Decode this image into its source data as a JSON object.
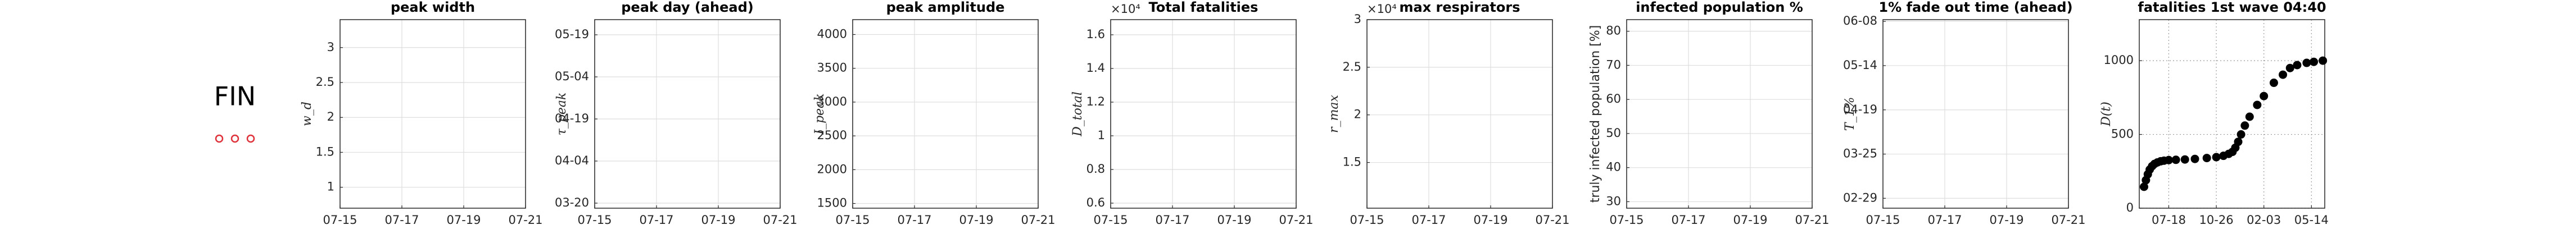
{
  "country": "FIN",
  "chart_data": [
    {
      "type": "line",
      "title": "peak width",
      "ylabel": "w_d",
      "series": [],
      "xlim": [
        197,
        203
      ],
      "xticks": [
        {
          "value": 197,
          "label": "07-15"
        },
        {
          "value": 199,
          "label": "07-17"
        },
        {
          "value": 201,
          "label": "07-19"
        },
        {
          "value": 203,
          "label": "07-21"
        }
      ],
      "ylim": [
        0.7,
        3.4
      ],
      "yticks": [
        1,
        1.5,
        2,
        2.5,
        3
      ],
      "grid": true
    },
    {
      "type": "line",
      "title": "peak day (ahead)",
      "ylabel": "τ_peak",
      "series": [],
      "xlim": [
        197,
        203
      ],
      "xticks": [
        {
          "value": 197,
          "label": "07-15"
        },
        {
          "value": 199,
          "label": "07-17"
        },
        {
          "value": 201,
          "label": "07-19"
        },
        {
          "value": 203,
          "label": "07-21"
        }
      ],
      "ylim": [
        78.2,
        145.4
      ],
      "yticks": [
        {
          "value": 80,
          "label": "03-20"
        },
        {
          "value": 95,
          "label": "04-04"
        },
        {
          "value": 110,
          "label": "04-19"
        },
        {
          "value": 125,
          "label": "05-04"
        },
        {
          "value": 140,
          "label": "05-19"
        }
      ],
      "grid": true
    },
    {
      "type": "line",
      "title": "peak amplitude",
      "ylabel": "I_peak",
      "series": [],
      "xlim": [
        197,
        203
      ],
      "xticks": [
        {
          "value": 197,
          "label": "07-15"
        },
        {
          "value": 199,
          "label": "07-17"
        },
        {
          "value": 201,
          "label": "07-19"
        },
        {
          "value": 203,
          "label": "07-21"
        }
      ],
      "ylim": [
        1430,
        4220
      ],
      "yticks": [
        1500,
        2000,
        2500,
        3000,
        3500,
        4000
      ],
      "grid": true
    },
    {
      "type": "line",
      "title": "Total fatalities",
      "ylabel": "D_total",
      "y_exponent": "×10⁴",
      "series": [],
      "xlim": [
        197,
        203
      ],
      "xticks": [
        {
          "value": 197,
          "label": "07-15"
        },
        {
          "value": 199,
          "label": "07-17"
        },
        {
          "value": 201,
          "label": "07-19"
        },
        {
          "value": 203,
          "label": "07-21"
        }
      ],
      "ylim": [
        0.57,
        1.69
      ],
      "yticks": [
        0.6,
        0.8,
        1,
        1.2,
        1.4,
        1.6
      ],
      "grid": true
    },
    {
      "type": "line",
      "title": "max respirators",
      "ylabel": "r_max",
      "y_exponent": "×10⁴",
      "series": [],
      "xlim": [
        197,
        203
      ],
      "xticks": [
        {
          "value": 197,
          "label": "07-15"
        },
        {
          "value": 199,
          "label": "07-17"
        },
        {
          "value": 201,
          "label": "07-19"
        },
        {
          "value": 203,
          "label": "07-21"
        }
      ],
      "ylim": [
        1.02,
        3
      ],
      "yticks": [
        1.5,
        2,
        2.5,
        3
      ],
      "grid": true
    },
    {
      "type": "line",
      "title": "infected population %",
      "ylabel": "truly infected population [%]",
      "series": [],
      "xlim": [
        197,
        203
      ],
      "xticks": [
        {
          "value": 197,
          "label": "07-15"
        },
        {
          "value": 199,
          "label": "07-17"
        },
        {
          "value": 201,
          "label": "07-19"
        },
        {
          "value": 203,
          "label": "07-21"
        }
      ],
      "ylim": [
        28.1,
        83.4
      ],
      "yticks": [
        30,
        40,
        50,
        60,
        70,
        80
      ],
      "grid": true
    },
    {
      "type": "line",
      "title": "1% fade out time (ahead)",
      "ylabel": "T_1%",
      "series": [],
      "xlim": [
        197,
        203
      ],
      "xticks": [
        {
          "value": 197,
          "label": "07-15"
        },
        {
          "value": 199,
          "label": "07-17"
        },
        {
          "value": 201,
          "label": "07-19"
        },
        {
          "value": 203,
          "label": "07-21"
        }
      ],
      "ylim": [
        54.4,
        161
      ],
      "yticks": [
        {
          "value": 60,
          "label": "02-29"
        },
        {
          "value": 85,
          "label": "03-25"
        },
        {
          "value": 110,
          "label": "04-19"
        },
        {
          "value": 135,
          "label": "05-14"
        },
        {
          "value": 160,
          "label": "06-08"
        }
      ],
      "grid": true
    },
    {
      "type": "scatter",
      "title": "fatalities 1st wave 04:40",
      "ylabel": "D(t)",
      "x": [
        148,
        152,
        156,
        160,
        165,
        170,
        176,
        183,
        190,
        200,
        215,
        234,
        255,
        280,
        300,
        315,
        326,
        334,
        340,
        346,
        352,
        360,
        370,
        386,
        400,
        421,
        440,
        455,
        470,
        490,
        505,
        524
      ],
      "series": [
        {
          "name": "fatalities",
          "color": "#000000",
          "values": [
            145,
            190,
            230,
            262,
            285,
            300,
            310,
            318,
            322,
            326,
            328,
            330,
            334,
            340,
            346,
            355,
            368,
            382,
            410,
            450,
            500,
            560,
            620,
            700,
            760,
            850,
            905,
            950,
            970,
            985,
            992,
            1000
          ]
        }
      ],
      "xlim": [
        138,
        528
      ],
      "xticks": [
        {
          "value": 200,
          "label": "07-18"
        },
        {
          "value": 300,
          "label": "10-26"
        },
        {
          "value": 400,
          "label": "02-03"
        },
        {
          "value": 500,
          "label": "05-14"
        }
      ],
      "ylim": [
        0,
        1278
      ],
      "yticks": [
        0,
        500,
        1000
      ],
      "grid": true,
      "grid_style": "dotted"
    }
  ]
}
